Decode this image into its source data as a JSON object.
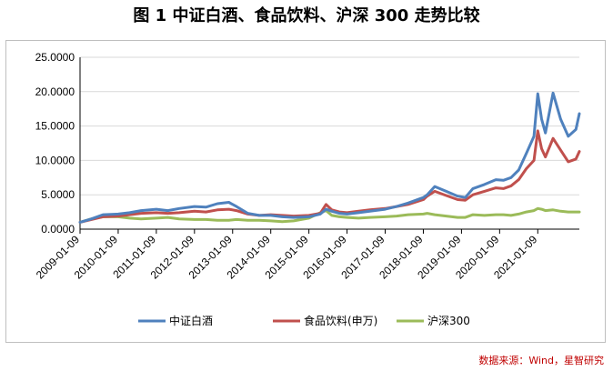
{
  "title": "图 1  中证白酒、食品饮料、沪深 300 走势比较",
  "source": "数据来源：Wind，星智研究",
  "chart_data": {
    "type": "line",
    "ylim": [
      0,
      25
    ],
    "yticks": [
      "25.0000",
      "20.0000",
      "15.0000",
      "10.0000",
      "5.0000",
      "0.0000"
    ],
    "ytick_values": [
      25,
      20,
      15,
      10,
      5,
      0
    ],
    "xrange": [
      2009.0,
      2022.09
    ],
    "xticks": [
      "2009-01-09",
      "2010-01-09",
      "2011-01-09",
      "2012-01-09",
      "2013-01-09",
      "2014-01-09",
      "2015-01-09",
      "2016-01-09",
      "2017-01-09",
      "2018-01-09",
      "2019-01-09",
      "2020-01-09",
      "2021-01-09"
    ],
    "xtick_values": [
      2009.0,
      2010.0,
      2011.0,
      2012.0,
      2013.0,
      2014.0,
      2015.0,
      2016.0,
      2017.0,
      2018.0,
      2019.0,
      2020.0,
      2021.0
    ],
    "grid": "horizontal",
    "legend": "bottom",
    "series": [
      {
        "name": "中证白酒",
        "color": "#4f81bd",
        "x": [
          2009.0,
          2009.3,
          2009.6,
          2010.0,
          2010.3,
          2010.6,
          2011.0,
          2011.3,
          2011.6,
          2012.0,
          2012.3,
          2012.6,
          2012.9,
          2013.1,
          2013.4,
          2013.7,
          2014.0,
          2014.3,
          2014.6,
          2015.0,
          2015.3,
          2015.45,
          2015.6,
          2015.8,
          2016.0,
          2016.3,
          2016.6,
          2017.0,
          2017.3,
          2017.6,
          2018.0,
          2018.1,
          2018.3,
          2018.6,
          2018.9,
          2019.1,
          2019.3,
          2019.6,
          2019.9,
          2020.1,
          2020.3,
          2020.5,
          2020.7,
          2020.9,
          2021.0,
          2021.1,
          2021.2,
          2021.4,
          2021.6,
          2021.8,
          2022.0,
          2022.09
        ],
        "y": [
          1.0,
          1.5,
          2.1,
          2.2,
          2.4,
          2.7,
          2.9,
          2.7,
          3.0,
          3.3,
          3.2,
          3.7,
          3.9,
          3.3,
          2.3,
          2.0,
          2.0,
          1.8,
          1.7,
          1.8,
          2.2,
          2.9,
          2.6,
          2.3,
          2.2,
          2.4,
          2.6,
          2.9,
          3.3,
          3.8,
          4.6,
          5.0,
          6.2,
          5.5,
          4.8,
          4.6,
          5.9,
          6.5,
          7.2,
          7.1,
          7.5,
          8.6,
          11.0,
          13.5,
          19.7,
          16.0,
          14.0,
          19.8,
          16.0,
          13.5,
          14.5,
          16.8
        ]
      },
      {
        "name": "食品饮料(申万)",
        "color": "#c0504d",
        "x": [
          2009.0,
          2009.3,
          2009.6,
          2010.0,
          2010.3,
          2010.6,
          2011.0,
          2011.3,
          2011.6,
          2012.0,
          2012.3,
          2012.6,
          2012.9,
          2013.1,
          2013.4,
          2013.7,
          2014.0,
          2014.3,
          2014.6,
          2015.0,
          2015.3,
          2015.45,
          2015.6,
          2015.8,
          2016.0,
          2016.3,
          2016.6,
          2017.0,
          2017.3,
          2017.6,
          2018.0,
          2018.1,
          2018.3,
          2018.6,
          2018.9,
          2019.1,
          2019.3,
          2019.6,
          2019.9,
          2020.1,
          2020.3,
          2020.5,
          2020.7,
          2020.9,
          2021.0,
          2021.1,
          2021.2,
          2021.4,
          2021.6,
          2021.8,
          2022.0,
          2022.09
        ],
        "y": [
          1.0,
          1.4,
          1.8,
          1.9,
          2.1,
          2.3,
          2.4,
          2.3,
          2.4,
          2.6,
          2.5,
          2.8,
          2.9,
          2.7,
          2.2,
          2.0,
          2.1,
          2.0,
          1.9,
          2.0,
          2.3,
          3.6,
          2.8,
          2.5,
          2.4,
          2.6,
          2.8,
          3.0,
          3.3,
          3.6,
          4.3,
          4.8,
          5.5,
          4.9,
          4.3,
          4.2,
          5.0,
          5.5,
          6.0,
          5.9,
          6.3,
          7.2,
          8.8,
          10.0,
          14.3,
          11.7,
          10.5,
          13.2,
          11.5,
          9.8,
          10.2,
          11.3
        ]
      },
      {
        "name": "沪深300",
        "color": "#9bbb59",
        "x": [
          2009.0,
          2009.3,
          2009.6,
          2010.0,
          2010.3,
          2010.6,
          2011.0,
          2011.3,
          2011.6,
          2012.0,
          2012.3,
          2012.6,
          2012.9,
          2013.1,
          2013.4,
          2013.7,
          2014.0,
          2014.3,
          2014.6,
          2015.0,
          2015.3,
          2015.45,
          2015.6,
          2015.8,
          2016.0,
          2016.3,
          2016.6,
          2017.0,
          2017.3,
          2017.6,
          2018.0,
          2018.1,
          2018.3,
          2018.6,
          2018.9,
          2019.1,
          2019.3,
          2019.6,
          2019.9,
          2020.1,
          2020.3,
          2020.5,
          2020.7,
          2020.9,
          2021.0,
          2021.1,
          2021.2,
          2021.4,
          2021.6,
          2021.8,
          2022.0,
          2022.09
        ],
        "y": [
          1.0,
          1.5,
          1.8,
          1.8,
          1.6,
          1.5,
          1.6,
          1.7,
          1.5,
          1.4,
          1.4,
          1.3,
          1.3,
          1.4,
          1.3,
          1.3,
          1.2,
          1.1,
          1.2,
          1.6,
          2.4,
          2.7,
          2.0,
          1.8,
          1.7,
          1.6,
          1.7,
          1.8,
          1.9,
          2.1,
          2.2,
          2.3,
          2.1,
          1.9,
          1.7,
          1.7,
          2.1,
          2.0,
          2.1,
          2.1,
          2.0,
          2.2,
          2.5,
          2.7,
          3.0,
          2.9,
          2.7,
          2.8,
          2.6,
          2.5,
          2.5,
          2.5
        ]
      }
    ]
  }
}
